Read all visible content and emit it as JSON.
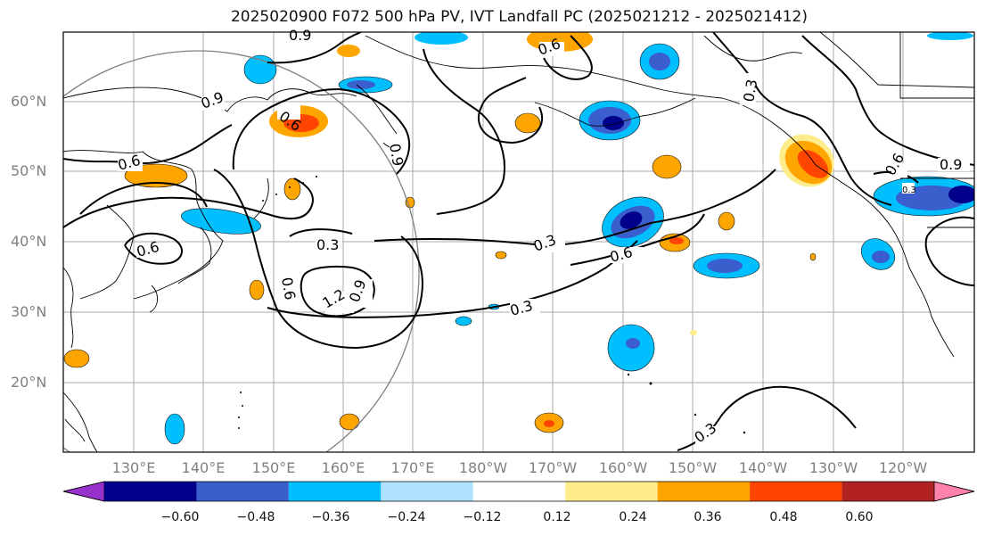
{
  "title": "2025020900 F072 500 hPa PV, IVT Landfall PC (2025021212 - 2025021412)",
  "lat_labels": [
    "60°N",
    "50°N",
    "40°N",
    "30°N",
    "20°N"
  ],
  "lon_labels": [
    "130°E",
    "140°E",
    "150°E",
    "160°E",
    "170°E",
    "180°W",
    "170°W",
    "160°W",
    "150°W",
    "140°W",
    "130°W",
    "120°W"
  ],
  "contour_labels": [
    "0.9",
    "0.6",
    "0.9",
    "0.6",
    "0.6",
    "0.9",
    "0.3",
    "0.6",
    "1.2",
    "0.9",
    "0.3",
    "0.3",
    "0.6",
    "0.3",
    "0.9",
    "0.3",
    "0.6",
    "0.3",
    "0.6"
  ],
  "colorbar": {
    "colors": [
      "#9932cc",
      "#00008b",
      "#3a5fcd",
      "#00bfff",
      "#b0e2ff",
      "#ffffff",
      "#ffec8b",
      "#ffa500",
      "#ff4500",
      "#b22222",
      "#ff82ab"
    ],
    "tick_labels": [
      "−0.60",
      "−0.48",
      "−0.36",
      "−0.24",
      "−0.12",
      "0.12",
      "0.24",
      "0.36",
      "0.48",
      "0.60"
    ]
  }
}
